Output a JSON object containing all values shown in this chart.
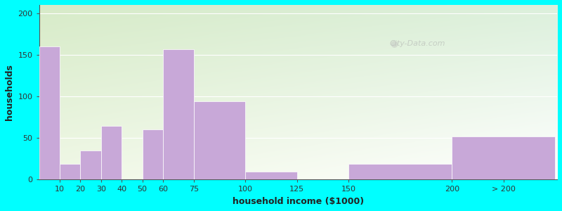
{
  "xlabel": "household income ($1000)",
  "ylabel": "households",
  "background_color": "#00FFFF",
  "bar_color": "#C8A8D8",
  "ylim": [
    0,
    210
  ],
  "yticks": [
    0,
    50,
    100,
    150,
    200
  ],
  "heights": [
    160,
    19,
    35,
    65,
    0,
    60,
    157,
    94,
    10,
    0,
    19,
    52
  ],
  "lefts": [
    0,
    10,
    20,
    30,
    40,
    50,
    60,
    75,
    100,
    125,
    150,
    200
  ],
  "widths": [
    10,
    10,
    10,
    10,
    10,
    10,
    15,
    25,
    25,
    25,
    50,
    50
  ],
  "xtick_positions": [
    10,
    20,
    30,
    40,
    50,
    60,
    75,
    100,
    125,
    150,
    200,
    225
  ],
  "xtick_labels": [
    "10",
    "20",
    "30",
    "40",
    "50",
    "60",
    "75",
    "100",
    "125",
    "150",
    "200",
    "> 200"
  ],
  "xlim": [
    0,
    251
  ],
  "watermark": "City-Data.com",
  "title_fontsize": 12,
  "subtitle_fontsize": 10,
  "label_fontsize": 9,
  "tick_fontsize": 8,
  "subtitle_color": "#557755",
  "title_color": "#1a1a1a",
  "grad_color_topleft": [
    215,
    235,
    200
  ],
  "grad_color_topright": [
    220,
    240,
    220
  ],
  "grad_color_bottomleft": [
    240,
    248,
    230
  ],
  "grad_color_bottomright": [
    255,
    255,
    255
  ]
}
